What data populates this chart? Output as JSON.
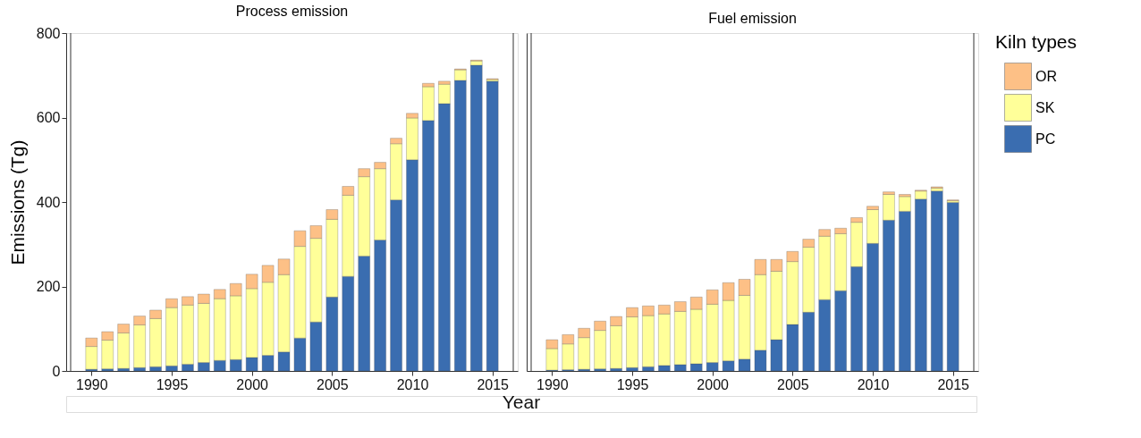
{
  "chart_data": [
    {
      "type": "bar",
      "title": "Process emission",
      "ylabel": "Emissions (Tg)",
      "xlabel": "Year",
      "stacked": true,
      "grid": false,
      "legend": "right",
      "legend_title": "Kiln types",
      "x": [
        1990,
        1991,
        1992,
        1993,
        1994,
        1995,
        1996,
        1997,
        1998,
        1999,
        2000,
        2001,
        2002,
        2003,
        2004,
        2005,
        2006,
        2007,
        2008,
        2009,
        2010,
        2011,
        2012,
        2013,
        2014,
        2015
      ],
      "xlim": [
        1988.7,
        2016.3
      ],
      "xticks": [
        1990,
        1995,
        2000,
        2005,
        2010,
        2015
      ],
      "ylim": [
        0,
        800
      ],
      "yticks": [
        0,
        200,
        400,
        600,
        800
      ],
      "series": [
        {
          "name": "PC",
          "color": "#3a6db0",
          "values": [
            4,
            5,
            6,
            8,
            10,
            12,
            16,
            20,
            25,
            27,
            32,
            37,
            45,
            78,
            116,
            175,
            224,
            272,
            310,
            405,
            500,
            593,
            633,
            688,
            724,
            686
          ]
        },
        {
          "name": "SK",
          "color": "#ffff99",
          "values": [
            54,
            68,
            84,
            101,
            114,
            138,
            140,
            140,
            146,
            151,
            163,
            173,
            183,
            217,
            198,
            184,
            192,
            188,
            169,
            133,
            99,
            80,
            46,
            25,
            10,
            4
          ]
        },
        {
          "name": "OR",
          "color": "#fdc086",
          "values": [
            20,
            20,
            21,
            21,
            20,
            21,
            20,
            22,
            22,
            29,
            34,
            40,
            37,
            37,
            30,
            23,
            21,
            19,
            15,
            13,
            11,
            8,
            7,
            2,
            2,
            2
          ]
        }
      ]
    },
    {
      "type": "bar",
      "title": "Fuel emission",
      "stacked": true,
      "grid": false,
      "tick_labels": "x",
      "x": [
        1990,
        1991,
        1992,
        1993,
        1994,
        1995,
        1996,
        1997,
        1998,
        1999,
        2000,
        2001,
        2002,
        2003,
        2004,
        2005,
        2006,
        2007,
        2008,
        2009,
        2010,
        2011,
        2012,
        2013,
        2014,
        2015
      ],
      "xlim": [
        1988.7,
        2016.3
      ],
      "xticks": [
        1990,
        1995,
        2000,
        2005,
        2010,
        2015
      ],
      "ylim": [
        0,
        800
      ],
      "yticks": [
        0,
        200,
        400,
        600,
        800
      ],
      "series": [
        {
          "name": "PC",
          "color": "#3a6db0",
          "values": [
            2,
            3,
            4,
            5,
            6,
            8,
            10,
            13,
            15,
            17,
            20,
            24,
            28,
            49,
            74,
            110,
            139,
            169,
            190,
            247,
            302,
            357,
            378,
            407,
            426,
            399
          ]
        },
        {
          "name": "SK",
          "color": "#ffff99",
          "values": [
            51,
            61,
            75,
            91,
            101,
            120,
            121,
            122,
            126,
            129,
            138,
            143,
            151,
            179,
            162,
            149,
            154,
            150,
            135,
            105,
            80,
            61,
            35,
            19,
            7,
            4
          ]
        },
        {
          "name": "OR",
          "color": "#fdc086",
          "values": [
            21,
            22,
            22,
            22,
            22,
            22,
            23,
            21,
            23,
            29,
            34,
            42,
            38,
            36,
            28,
            24,
            19,
            16,
            13,
            11,
            8,
            6,
            5,
            2,
            3,
            2
          ]
        }
      ]
    }
  ]
}
